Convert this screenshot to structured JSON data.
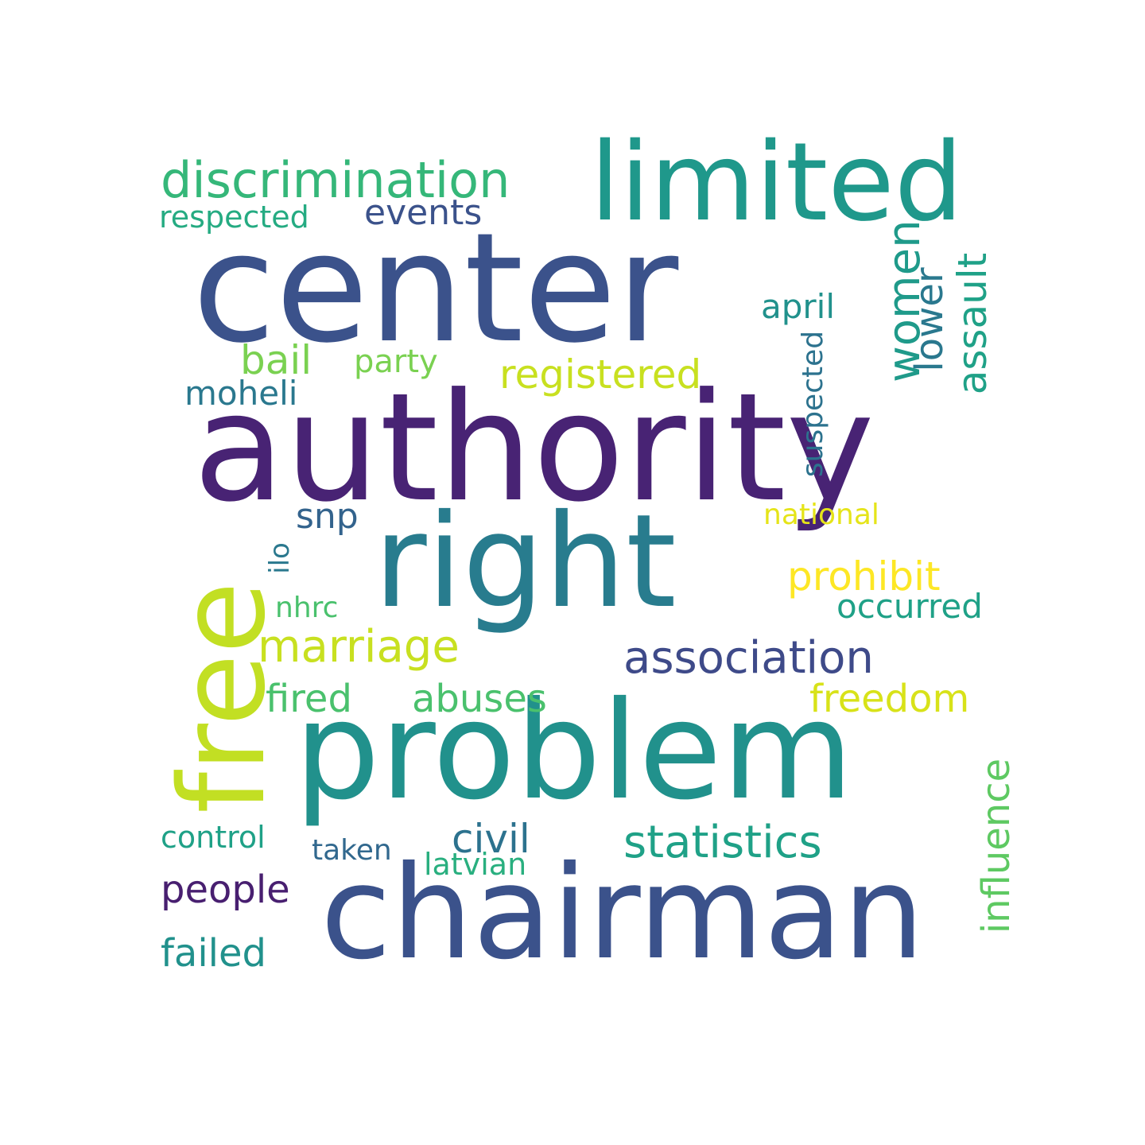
{
  "colors": {
    "background": "#ffffff"
  },
  "words": [
    {
      "key": "authority",
      "text": "authority",
      "color": "#482374",
      "vertical": false
    },
    {
      "key": "center",
      "text": "center",
      "color": "#3b528b",
      "vertical": false
    },
    {
      "key": "problem",
      "text": "problem",
      "color": "#21918c",
      "vertical": false
    },
    {
      "key": "chairman",
      "text": "chairman",
      "color": "#3b528b",
      "vertical": false
    },
    {
      "key": "right",
      "text": "right",
      "color": "#287c8e",
      "vertical": false
    },
    {
      "key": "limited",
      "text": "limited",
      "color": "#1f988b",
      "vertical": false
    },
    {
      "key": "free",
      "text": "free",
      "color": "#c2df23",
      "vertical": true
    },
    {
      "key": "discrimination",
      "text": "discrimination",
      "color": "#35b779",
      "vertical": false
    },
    {
      "key": "association",
      "text": "association",
      "color": "#3e4a89",
      "vertical": false
    },
    {
      "key": "statistics",
      "text": "statistics",
      "color": "#1fa187",
      "vertical": false
    },
    {
      "key": "marriage",
      "text": "marriage",
      "color": "#c8e020",
      "vertical": false
    },
    {
      "key": "registered",
      "text": "registered",
      "color": "#c8e020",
      "vertical": false
    },
    {
      "key": "women",
      "text": "women",
      "color": "#1f9a8a",
      "vertical": true
    },
    {
      "key": "events",
      "text": "events",
      "color": "#3b528b",
      "vertical": false
    },
    {
      "key": "respected",
      "text": "respected",
      "color": "#25ab82",
      "vertical": false
    },
    {
      "key": "bail",
      "text": "bail",
      "color": "#7ad151",
      "vertical": false
    },
    {
      "key": "party",
      "text": "party",
      "color": "#7ad151",
      "vertical": false
    },
    {
      "key": "moheli",
      "text": "moheli",
      "color": "#2a788e",
      "vertical": false
    },
    {
      "key": "april",
      "text": "april",
      "color": "#21918c",
      "vertical": false
    },
    {
      "key": "lower",
      "text": "lower",
      "color": "#2a788e",
      "vertical": true
    },
    {
      "key": "assault",
      "text": "assault",
      "color": "#1fa187",
      "vertical": true
    },
    {
      "key": "suspected",
      "text": "suspected",
      "color": "#2c728e",
      "vertical": true
    },
    {
      "key": "snp",
      "text": "snp",
      "color": "#33638d",
      "vertical": false
    },
    {
      "key": "ilo",
      "text": "ilo",
      "color": "#2a788e",
      "vertical": true
    },
    {
      "key": "national",
      "text": "national",
      "color": "#e5e419",
      "vertical": false
    },
    {
      "key": "prohibit",
      "text": "prohibit",
      "color": "#fde725",
      "vertical": false
    },
    {
      "key": "nhrc",
      "text": "nhrc",
      "color": "#4ac16d",
      "vertical": false
    },
    {
      "key": "occurred",
      "text": "occurred",
      "color": "#1fa187",
      "vertical": false
    },
    {
      "key": "fired",
      "text": "fired",
      "color": "#4ac16d",
      "vertical": false
    },
    {
      "key": "abuses",
      "text": "abuses",
      "color": "#4ac16d",
      "vertical": false
    },
    {
      "key": "freedom",
      "text": "freedom",
      "color": "#d8e219",
      "vertical": false
    },
    {
      "key": "influence",
      "text": "influence",
      "color": "#5ec962",
      "vertical": true
    },
    {
      "key": "control",
      "text": "control",
      "color": "#1fa187",
      "vertical": false
    },
    {
      "key": "civil",
      "text": "civil",
      "color": "#2c728e",
      "vertical": false
    },
    {
      "key": "taken",
      "text": "taken",
      "color": "#31688e",
      "vertical": false
    },
    {
      "key": "latvian",
      "text": "latvian",
      "color": "#29af7f",
      "vertical": false
    },
    {
      "key": "people",
      "text": "people",
      "color": "#481f70",
      "vertical": false
    },
    {
      "key": "failed",
      "text": "failed",
      "color": "#21918c",
      "vertical": false
    }
  ]
}
